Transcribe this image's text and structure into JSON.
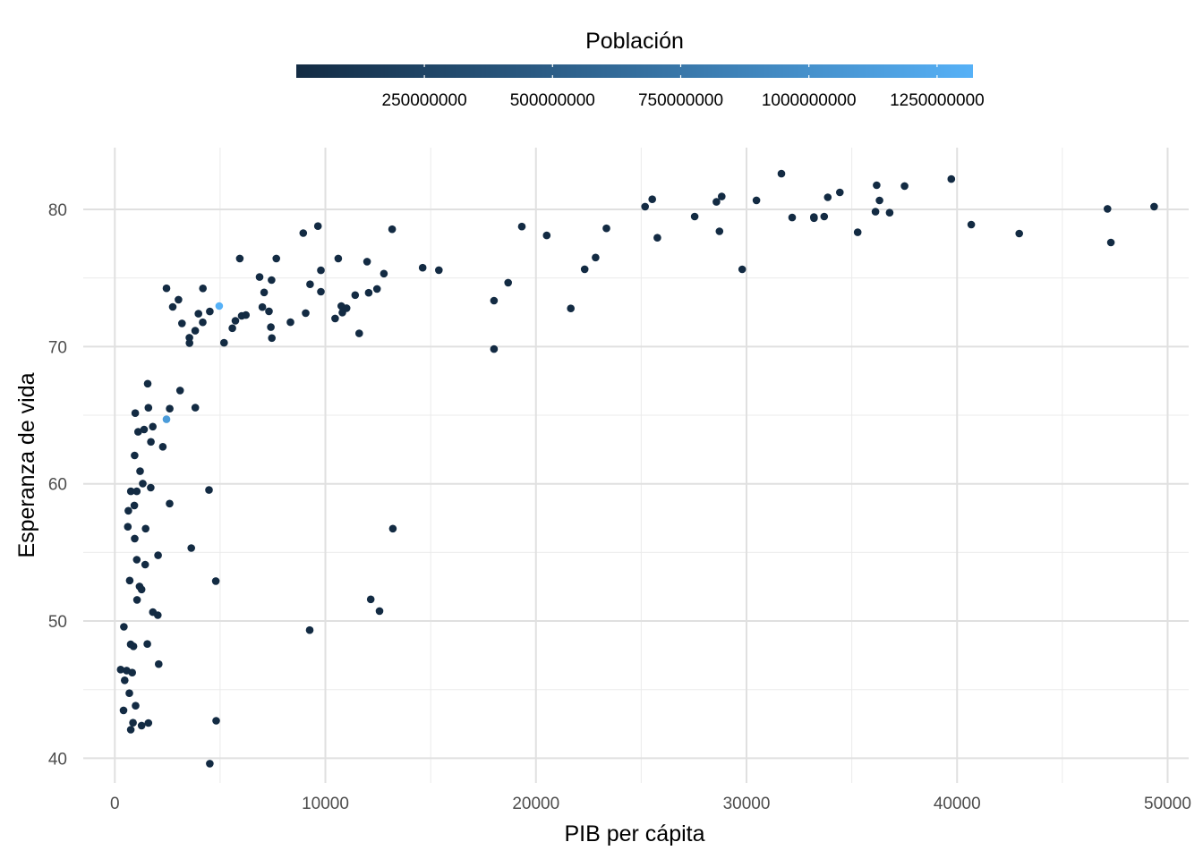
{
  "chart_data": {
    "type": "scatter",
    "title": "",
    "xlabel": "PIB per cápita",
    "ylabel": "Esperanza de vida",
    "xlim": [
      -1500,
      51000
    ],
    "ylim": [
      38.2,
      84.5
    ],
    "x_ticks": [
      0,
      10000,
      20000,
      30000,
      40000,
      50000
    ],
    "y_ticks": [
      40,
      50,
      60,
      70,
      80
    ],
    "grid": true,
    "legend": {
      "title": "Población",
      "position": "top",
      "type": "colorbar",
      "min": 200000,
      "max": 1320000000,
      "breaks": [
        250000000,
        500000000,
        750000000,
        1000000000,
        1250000000
      ],
      "colors": {
        "low": "#132B43",
        "high": "#56B1F7"
      }
    },
    "points": [
      {
        "x": 4959,
        "y": 72.96,
        "pop": 1318683096
      },
      {
        "x": 2452,
        "y": 64.7,
        "pop": 1110396331
      },
      {
        "x": 278,
        "y": 46.46
      },
      {
        "x": 430,
        "y": 49.58
      },
      {
        "x": 470,
        "y": 45.68
      },
      {
        "x": 415,
        "y": 43.49
      },
      {
        "x": 560,
        "y": 46.39
      },
      {
        "x": 619,
        "y": 56.87
      },
      {
        "x": 641,
        "y": 58.04
      },
      {
        "x": 706,
        "y": 52.95
      },
      {
        "x": 690,
        "y": 44.74
      },
      {
        "x": 760,
        "y": 59.45
      },
      {
        "x": 752,
        "y": 48.3
      },
      {
        "x": 759,
        "y": 42.08
      },
      {
        "x": 824,
        "y": 46.24
      },
      {
        "x": 863,
        "y": 42.59
      },
      {
        "x": 883,
        "y": 48.16
      },
      {
        "x": 926,
        "y": 58.42
      },
      {
        "x": 942,
        "y": 62.07
      },
      {
        "x": 944,
        "y": 56.01
      },
      {
        "x": 986,
        "y": 43.83
      },
      {
        "x": 970,
        "y": 65.15
      },
      {
        "x": 1042,
        "y": 59.45
      },
      {
        "x": 1044,
        "y": 54.47
      },
      {
        "x": 1056,
        "y": 51.54
      },
      {
        "x": 1107,
        "y": 63.79
      },
      {
        "x": 1172,
        "y": 52.52
      },
      {
        "x": 1201,
        "y": 60.92
      },
      {
        "x": 1270,
        "y": 52.3
      },
      {
        "x": 1271,
        "y": 42.38
      },
      {
        "x": 1328,
        "y": 60.02
      },
      {
        "x": 1391,
        "y": 63.96
      },
      {
        "x": 1441,
        "y": 54.11
      },
      {
        "x": 1463,
        "y": 56.73
      },
      {
        "x": 1545,
        "y": 48.33
      },
      {
        "x": 1596,
        "y": 42.57
      },
      {
        "x": 1561,
        "y": 67.3
      },
      {
        "x": 1593,
        "y": 65.54
      },
      {
        "x": 1704,
        "y": 59.72
      },
      {
        "x": 1713,
        "y": 63.06
      },
      {
        "x": 1803,
        "y": 64.17
      },
      {
        "x": 1807,
        "y": 50.65
      },
      {
        "x": 2042,
        "y": 50.43
      },
      {
        "x": 2082,
        "y": 46.86
      },
      {
        "x": 2055,
        "y": 54.79
      },
      {
        "x": 2281,
        "y": 62.7
      },
      {
        "x": 2452,
        "y": 74.25
      },
      {
        "x": 2602,
        "y": 58.56
      },
      {
        "x": 2606,
        "y": 65.48
      },
      {
        "x": 2749,
        "y": 72.89
      },
      {
        "x": 3025,
        "y": 73.42
      },
      {
        "x": 3099,
        "y": 66.8
      },
      {
        "x": 3190,
        "y": 71.69
      },
      {
        "x": 3548,
        "y": 70.26
      },
      {
        "x": 3540,
        "y": 70.65
      },
      {
        "x": 3633,
        "y": 55.32
      },
      {
        "x": 3820,
        "y": 71.16
      },
      {
        "x": 3822,
        "y": 65.55
      },
      {
        "x": 3970,
        "y": 72.4
      },
      {
        "x": 4173,
        "y": 71.77
      },
      {
        "x": 4184,
        "y": 74.24
      },
      {
        "x": 4471,
        "y": 59.55
      },
      {
        "x": 4513,
        "y": 72.56
      },
      {
        "x": 4797,
        "y": 52.91
      },
      {
        "x": 4811,
        "y": 42.73
      },
      {
        "x": 4509,
        "y": 39.61
      },
      {
        "x": 5187,
        "y": 70.28
      },
      {
        "x": 5581,
        "y": 71.34
      },
      {
        "x": 5728,
        "y": 71.88
      },
      {
        "x": 5937,
        "y": 76.42
      },
      {
        "x": 6025,
        "y": 72.24
      },
      {
        "x": 6223,
        "y": 72.3
      },
      {
        "x": 6873,
        "y": 75.07
      },
      {
        "x": 7006,
        "y": 72.88
      },
      {
        "x": 7092,
        "y": 73.95
      },
      {
        "x": 7320,
        "y": 72.57
      },
      {
        "x": 7408,
        "y": 71.42
      },
      {
        "x": 7458,
        "y": 70.62
      },
      {
        "x": 7446,
        "y": 74.85
      },
      {
        "x": 7670,
        "y": 76.42
      },
      {
        "x": 8341,
        "y": 71.78
      },
      {
        "x": 8948,
        "y": 78.27
      },
      {
        "x": 9065,
        "y": 72.44
      },
      {
        "x": 9270,
        "y": 74.54
      },
      {
        "x": 9253,
        "y": 49.34
      },
      {
        "x": 9645,
        "y": 78.78
      },
      {
        "x": 9787,
        "y": 75.56
      },
      {
        "x": 9786,
        "y": 74.0
      },
      {
        "x": 10461,
        "y": 72.05
      },
      {
        "x": 10612,
        "y": 76.42
      },
      {
        "x": 10757,
        "y": 72.96
      },
      {
        "x": 10808,
        "y": 72.48
      },
      {
        "x": 11006,
        "y": 72.8
      },
      {
        "x": 11415,
        "y": 73.75
      },
      {
        "x": 11606,
        "y": 70.96
      },
      {
        "x": 11978,
        "y": 76.19
      },
      {
        "x": 12057,
        "y": 73.92
      },
      {
        "x": 12154,
        "y": 51.58
      },
      {
        "x": 12452,
        "y": 74.2
      },
      {
        "x": 12570,
        "y": 50.73
      },
      {
        "x": 12779,
        "y": 75.32
      },
      {
        "x": 13172,
        "y": 78.55
      },
      {
        "x": 13206,
        "y": 56.73
      },
      {
        "x": 14619,
        "y": 75.75
      },
      {
        "x": 15390,
        "y": 75.57
      },
      {
        "x": 18009,
        "y": 73.35
      },
      {
        "x": 18008,
        "y": 69.82
      },
      {
        "x": 18678,
        "y": 74.66
      },
      {
        "x": 19329,
        "y": 78.75
      },
      {
        "x": 20510,
        "y": 78.1
      },
      {
        "x": 21655,
        "y": 72.78
      },
      {
        "x": 22316,
        "y": 75.64
      },
      {
        "x": 22833,
        "y": 76.49
      },
      {
        "x": 23348,
        "y": 78.62
      },
      {
        "x": 25185,
        "y": 80.2
      },
      {
        "x": 25523,
        "y": 80.74
      },
      {
        "x": 25768,
        "y": 77.93
      },
      {
        "x": 27538,
        "y": 79.48
      },
      {
        "x": 28570,
        "y": 80.55
      },
      {
        "x": 28718,
        "y": 78.4
      },
      {
        "x": 28821,
        "y": 80.94
      },
      {
        "x": 29796,
        "y": 75.63
      },
      {
        "x": 30470,
        "y": 80.66
      },
      {
        "x": 31656,
        "y": 82.6
      },
      {
        "x": 32170,
        "y": 79.41
      },
      {
        "x": 33203,
        "y": 79.44
      },
      {
        "x": 33207,
        "y": 79.36
      },
      {
        "x": 33692,
        "y": 79.48
      },
      {
        "x": 33860,
        "y": 80.88
      },
      {
        "x": 34435,
        "y": 81.24
      },
      {
        "x": 35278,
        "y": 78.33
      },
      {
        "x": 36126,
        "y": 79.83
      },
      {
        "x": 36181,
        "y": 81.76
      },
      {
        "x": 36319,
        "y": 80.65
      },
      {
        "x": 36798,
        "y": 79.76
      },
      {
        "x": 37506,
        "y": 81.7
      },
      {
        "x": 39725,
        "y": 82.21
      },
      {
        "x": 40676,
        "y": 78.89
      },
      {
        "x": 42952,
        "y": 78.24
      },
      {
        "x": 47143,
        "y": 80.04
      },
      {
        "x": 47307,
        "y": 77.59
      },
      {
        "x": 49357,
        "y": 80.2
      }
    ]
  }
}
